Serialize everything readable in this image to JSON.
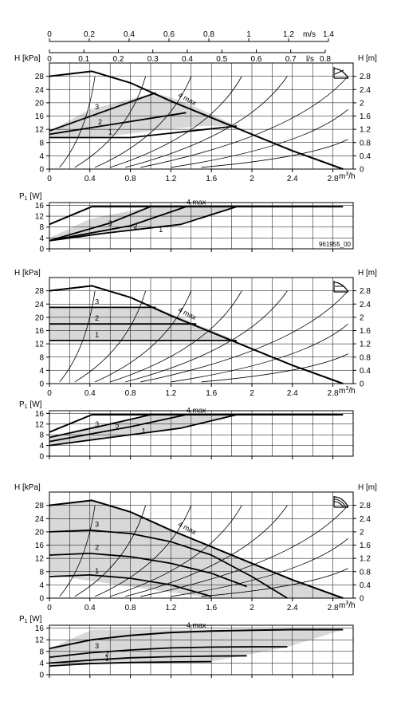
{
  "chart_data": [
    {
      "type": "line",
      "variant": "head",
      "panel": 1,
      "ylabel": "H [kPa]",
      "ylabel_right": "H [m]",
      "xlabel": "m³/h",
      "top_axis_1": {
        "label": "m/s",
        "ticks": [
          "0",
          "0.2",
          "0.4",
          "0.6",
          "0.8",
          "1",
          "1.2",
          "1.4"
        ],
        "values": [
          0,
          0.2,
          0.4,
          0.6,
          0.8,
          1.0,
          1.2,
          1.4
        ]
      },
      "top_axis_2": {
        "label": "l/s",
        "ticks": [
          "0",
          "0.1",
          "0.2",
          "0.3",
          "0.4",
          "0.5",
          "0.6",
          "0.7",
          "0.8"
        ],
        "values": [
          0,
          0.1,
          0.2,
          0.3,
          0.4,
          0.5,
          0.6,
          0.7,
          0.8
        ]
      },
      "xlim": [
        0,
        3.0
      ],
      "xticks": [
        0,
        0.4,
        0.8,
        1.2,
        1.6,
        2.0,
        2.4,
        2.8
      ],
      "xtick_labels": [
        "0",
        "0.4",
        "0.8",
        "1.2",
        "1.6",
        "2",
        "2.4",
        "2.8"
      ],
      "ylim": [
        0,
        32
      ],
      "yticks": [
        0,
        4,
        8,
        12,
        16,
        20,
        24,
        28
      ],
      "right_ticks": [
        "0",
        "0.4",
        "0.8",
        "1.2",
        "1.6",
        "2",
        "2.4",
        "2.8"
      ],
      "right_values": [
        0,
        0.4,
        0.8,
        1.2,
        1.6,
        2.0,
        2.4,
        2.8
      ],
      "mode_icon": "proportional-pressure-icon",
      "shaded_region": [
        [
          0,
          9.5
        ],
        [
          0.5,
          9.5
        ],
        [
          1.0,
          11.5
        ],
        [
          1.5,
          13
        ],
        [
          1.85,
          13
        ],
        [
          1.35,
          20
        ],
        [
          1.05,
          23
        ],
        [
          0.4,
          18
        ],
        [
          0,
          11.5
        ]
      ],
      "series": [
        {
          "name": "4 max",
          "x": [
            0,
            0.42,
            0.8,
            1.2,
            1.6,
            2.0,
            2.4,
            2.9
          ],
          "y": [
            28,
            29.5,
            26,
            20.5,
            15.5,
            10.5,
            5.5,
            0
          ]
        },
        {
          "name": "3",
          "x": [
            0,
            1.05
          ],
          "y": [
            11.5,
            23
          ]
        },
        {
          "name": "2",
          "x": [
            0,
            1.35
          ],
          "y": [
            10.5,
            17
          ]
        },
        {
          "name": "1",
          "x": [
            0,
            0.8,
            1.85
          ],
          "y": [
            9.5,
            9.5,
            13
          ]
        }
      ],
      "system_curves": [
        {
          "x": [
            0.1,
            0.45
          ],
          "y": [
            0.5,
            28
          ]
        },
        {
          "x": [
            0.25,
            0.95
          ],
          "y": [
            0.5,
            28
          ]
        },
        {
          "x": [
            0.45,
            1.4
          ],
          "y": [
            0.5,
            28
          ]
        },
        {
          "x": [
            0.6,
            1.9
          ],
          "y": [
            0.5,
            28
          ]
        },
        {
          "x": [
            0.75,
            2.35
          ],
          "y": [
            0.5,
            28
          ]
        },
        {
          "x": [
            0.9,
            2.95
          ],
          "y": [
            0.5,
            28
          ]
        },
        {
          "x": [
            1.2,
            2.95
          ],
          "y": [
            0.5,
            18
          ]
        },
        {
          "x": [
            1.5,
            2.95
          ],
          "y": [
            0.5,
            9
          ]
        }
      ]
    },
    {
      "type": "line",
      "variant": "power",
      "panel": 1,
      "ylabel": "P1 [W]",
      "xlim": [
        0,
        3.0
      ],
      "xticks": [
        0,
        0.4,
        0.8,
        1.2,
        1.6,
        2.0,
        2.4,
        2.8
      ],
      "ylim": [
        0,
        17
      ],
      "yticks": [
        0,
        4,
        8,
        12,
        16
      ],
      "code": "961955_00",
      "shaded_region": [
        [
          0,
          3
        ],
        [
          0.5,
          5.5
        ],
        [
          1.3,
          9
        ],
        [
          1.85,
          15.5
        ],
        [
          1.0,
          15.5
        ],
        [
          0.4,
          11
        ],
        [
          0,
          4
        ]
      ],
      "series": [
        {
          "name": "4 max",
          "x": [
            0,
            0.42,
            1.0,
            2.9
          ],
          "y": [
            9,
            15.5,
            15.5,
            15.5
          ]
        },
        {
          "name": "3",
          "x": [
            0,
            0.6,
            1.0
          ],
          "y": [
            3,
            9.5,
            15.5
          ]
        },
        {
          "name": "2",
          "x": [
            0,
            0.8,
            1.35
          ],
          "y": [
            3,
            8.5,
            15.5
          ]
        },
        {
          "name": "1",
          "x": [
            0,
            0.5,
            1.3,
            1.85
          ],
          "y": [
            3,
            5.5,
            9,
            15.5
          ]
        }
      ]
    },
    {
      "type": "line",
      "variant": "head",
      "panel": 2,
      "ylabel": "H [kPa]",
      "ylabel_right": "H [m]",
      "xlabel": "m³/h",
      "xlim": [
        0,
        3.0
      ],
      "xticks": [
        0,
        0.4,
        0.8,
        1.2,
        1.6,
        2.0,
        2.4,
        2.8
      ],
      "xtick_labels": [
        "0",
        "0.4",
        "0.8",
        "1.2",
        "1.6",
        "2",
        "2.4",
        "2.8"
      ],
      "ylim": [
        0,
        32
      ],
      "yticks": [
        0,
        4,
        8,
        12,
        16,
        20,
        24,
        28
      ],
      "right_ticks": [
        "0",
        "0.4",
        "0.8",
        "1.2",
        "1.6",
        "2",
        "2.4",
        "2.8"
      ],
      "right_values": [
        0,
        0.4,
        0.8,
        1.2,
        1.6,
        2.0,
        2.4,
        2.8
      ],
      "mode_icon": "constant-pressure-icon",
      "shaded_region": [
        [
          0,
          13
        ],
        [
          1.85,
          13
        ],
        [
          1.05,
          23
        ],
        [
          0,
          23
        ]
      ],
      "series": [
        {
          "name": "4 max",
          "x": [
            0,
            0.42,
            0.8,
            1.2,
            1.6,
            2.0,
            2.4,
            2.9
          ],
          "y": [
            28,
            29.5,
            26,
            20.5,
            15.5,
            10.5,
            5.5,
            0
          ]
        },
        {
          "name": "3",
          "x": [
            0,
            1.05
          ],
          "y": [
            23,
            23
          ]
        },
        {
          "name": "2",
          "x": [
            0,
            1.45
          ],
          "y": [
            18,
            18
          ]
        },
        {
          "name": "1",
          "x": [
            0,
            1.85
          ],
          "y": [
            13,
            13
          ]
        }
      ],
      "system_curves": [
        {
          "x": [
            0.1,
            0.45
          ],
          "y": [
            0.5,
            28
          ]
        },
        {
          "x": [
            0.25,
            0.95
          ],
          "y": [
            0.5,
            28
          ]
        },
        {
          "x": [
            0.45,
            1.4
          ],
          "y": [
            0.5,
            28
          ]
        },
        {
          "x": [
            0.6,
            1.9
          ],
          "y": [
            0.5,
            28
          ]
        },
        {
          "x": [
            0.75,
            2.35
          ],
          "y": [
            0.5,
            28
          ]
        },
        {
          "x": [
            0.9,
            2.95
          ],
          "y": [
            0.5,
            28
          ]
        },
        {
          "x": [
            1.2,
            2.95
          ],
          "y": [
            0.5,
            18
          ]
        },
        {
          "x": [
            1.5,
            2.95
          ],
          "y": [
            0.5,
            9
          ]
        }
      ]
    },
    {
      "type": "line",
      "variant": "power",
      "panel": 2,
      "ylabel": "P1 [W]",
      "xlim": [
        0,
        3.0
      ],
      "xticks": [
        0,
        0.4,
        0.8,
        1.2,
        1.6,
        2.0,
        2.4,
        2.8
      ],
      "ylim": [
        0,
        17
      ],
      "yticks": [
        0,
        4,
        8,
        12,
        16
      ],
      "shaded_region": [
        [
          0,
          4
        ],
        [
          0.5,
          6.5
        ],
        [
          1.3,
          10.5
        ],
        [
          1.85,
          15.5
        ],
        [
          1.0,
          15.5
        ],
        [
          0.4,
          11
        ],
        [
          0,
          7
        ]
      ],
      "series": [
        {
          "name": "4 max",
          "x": [
            0,
            0.42,
            1.0,
            2.9
          ],
          "y": [
            9,
            15.5,
            15.5,
            15.5
          ]
        },
        {
          "name": "3",
          "x": [
            0,
            0.6,
            1.0
          ],
          "y": [
            7,
            12,
            15.5
          ]
        },
        {
          "name": "2",
          "x": [
            0,
            0.8,
            1.35
          ],
          "y": [
            5.5,
            11,
            15.5
          ]
        },
        {
          "name": "1",
          "x": [
            0,
            0.5,
            1.3,
            1.85
          ],
          "y": [
            4,
            6.5,
            10.5,
            15.5
          ]
        }
      ]
    },
    {
      "type": "line",
      "variant": "head",
      "panel": 3,
      "ylabel": "H [kPa]",
      "ylabel_right": "H [m]",
      "xlabel": "m³/h",
      "xlim": [
        0,
        3.0
      ],
      "xticks": [
        0,
        0.4,
        0.8,
        1.2,
        1.6,
        2.0,
        2.4,
        2.8
      ],
      "xtick_labels": [
        "0",
        "0.4",
        "0.8",
        "1.2",
        "1.6",
        "2",
        "2.4",
        "2.8"
      ],
      "ylim": [
        0,
        32
      ],
      "yticks": [
        0,
        4,
        8,
        12,
        16,
        20,
        24,
        28
      ],
      "right_ticks": [
        "0",
        "0.4",
        "0.8",
        "1.2",
        "1.6",
        "2",
        "2.4",
        "2.8"
      ],
      "right_values": [
        0,
        0.4,
        0.8,
        1.2,
        1.6,
        2.0,
        2.4,
        2.8
      ],
      "mode_icon": "constant-curve-icon",
      "shaded_region": [
        [
          0,
          28
        ],
        [
          0.42,
          29.5
        ],
        [
          0.8,
          26
        ],
        [
          1.2,
          20.5
        ],
        [
          1.6,
          15.5
        ],
        [
          2.0,
          10.5
        ],
        [
          2.4,
          5.5
        ],
        [
          2.9,
          0
        ],
        [
          1.6,
          0
        ],
        [
          0,
          7
        ]
      ],
      "series": [
        {
          "name": "4 max",
          "x": [
            0,
            0.42,
            0.8,
            1.2,
            1.6,
            2.0,
            2.4,
            2.9
          ],
          "y": [
            28,
            29.5,
            26,
            20.5,
            15.5,
            10.5,
            5.5,
            0
          ]
        },
        {
          "name": "3",
          "x": [
            0,
            0.4,
            0.8,
            1.2,
            1.6,
            2.0,
            2.35
          ],
          "y": [
            20,
            20.5,
            19.5,
            17,
            13,
            6.5,
            0
          ]
        },
        {
          "name": "2",
          "x": [
            0,
            0.4,
            0.8,
            1.2,
            1.6,
            1.95
          ],
          "y": [
            13,
            13.5,
            12.5,
            10.5,
            7.5,
            3.5
          ]
        },
        {
          "name": "1",
          "x": [
            0,
            0.4,
            0.8,
            1.2,
            1.6
          ],
          "y": [
            6.5,
            7,
            6,
            4,
            0.5
          ]
        }
      ],
      "system_curves": [
        {
          "x": [
            0.1,
            0.45
          ],
          "y": [
            0.5,
            28
          ]
        },
        {
          "x": [
            0.25,
            0.95
          ],
          "y": [
            0.5,
            28
          ]
        },
        {
          "x": [
            0.45,
            1.4
          ],
          "y": [
            0.5,
            28
          ]
        },
        {
          "x": [
            0.6,
            1.9
          ],
          "y": [
            0.5,
            28
          ]
        },
        {
          "x": [
            0.75,
            2.35
          ],
          "y": [
            0.5,
            28
          ]
        },
        {
          "x": [
            0.9,
            2.95
          ],
          "y": [
            0.5,
            28
          ]
        },
        {
          "x": [
            1.2,
            2.95
          ],
          "y": [
            0.5,
            18
          ]
        },
        {
          "x": [
            1.5,
            2.95
          ],
          "y": [
            0.5,
            9
          ]
        }
      ]
    },
    {
      "type": "line",
      "variant": "power",
      "panel": 3,
      "ylabel": "P1 [W]",
      "xlim": [
        0,
        3.0
      ],
      "xticks": [
        0,
        0.4,
        0.8,
        1.2,
        1.6,
        2.0,
        2.4,
        2.8
      ],
      "ylim": [
        0,
        17
      ],
      "yticks": [
        0,
        4,
        8,
        12,
        16
      ],
      "shaded_region": [
        [
          0,
          3
        ],
        [
          0.4,
          4
        ],
        [
          0.8,
          4.5
        ],
        [
          1.6,
          4.5
        ],
        [
          2.35,
          9.5
        ],
        [
          2.9,
          15.5
        ],
        [
          0.42,
          15.5
        ],
        [
          0,
          9
        ]
      ],
      "series": [
        {
          "name": "4 max",
          "x": [
            0,
            0.42,
            0.8,
            1.2,
            1.6,
            2.0,
            2.4,
            2.9
          ],
          "y": [
            9,
            12,
            13.5,
            14.5,
            15,
            15.3,
            15.5,
            15.5
          ]
        },
        {
          "name": "3",
          "x": [
            0,
            0.4,
            0.8,
            1.2,
            1.6,
            2.0,
            2.35
          ],
          "y": [
            6,
            7.5,
            8.5,
            9.2,
            9.5,
            9.6,
            9.6
          ]
        },
        {
          "name": "2",
          "x": [
            0,
            0.4,
            0.8,
            1.2,
            1.6,
            1.95
          ],
          "y": [
            4,
            5,
            5.8,
            6.2,
            6.4,
            6.5
          ]
        },
        {
          "name": "1",
          "x": [
            0,
            0.4,
            0.8,
            1.2,
            1.6
          ],
          "y": [
            3,
            3.8,
            4.2,
            4.4,
            4.5
          ]
        }
      ]
    }
  ]
}
